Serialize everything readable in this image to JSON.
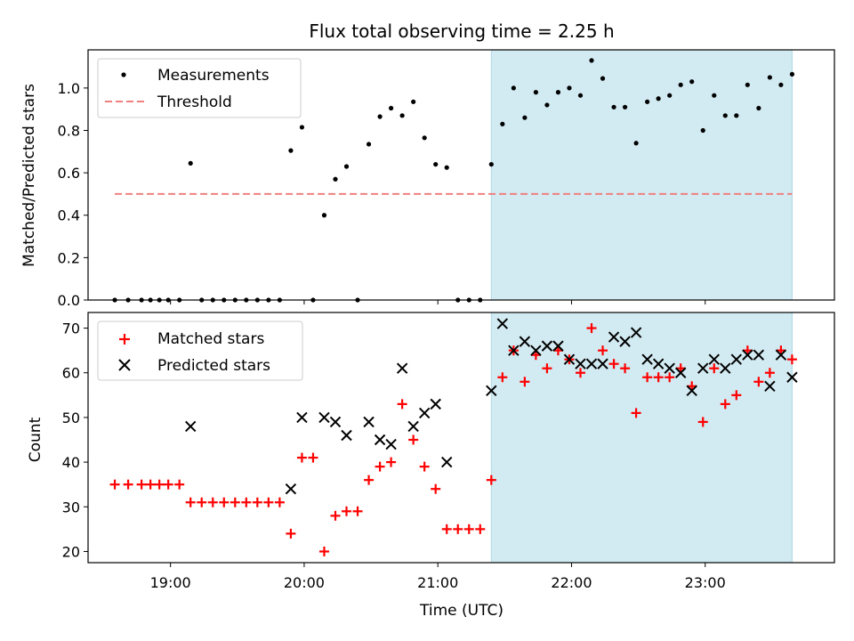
{
  "chart_data": [
    {
      "type": "scatter",
      "title": "Flux total observing time = 2.25 h",
      "xlabel": "",
      "ylabel": "Matched/Predicted stars",
      "xlim": [
        "18:23",
        "23:58"
      ],
      "ylim": [
        0,
        1.18
      ],
      "yticks": [
        "0.0",
        "0.2",
        "0.4",
        "0.6",
        "0.8",
        "1.0"
      ],
      "grid": false,
      "legend": "top-left",
      "shaded_region": {
        "x_start": "21:24",
        "x_end": "23:39",
        "color": "#add8e6"
      },
      "series": [
        {
          "name": "Measurements",
          "marker": "dot",
          "color": "#000000",
          "points": [
            [
              "18:35",
              0
            ],
            [
              "18:41",
              0
            ],
            [
              "18:47",
              0
            ],
            [
              "18:51",
              0
            ],
            [
              "18:55",
              0
            ],
            [
              "18:59",
              0
            ],
            [
              "19:04",
              0
            ],
            [
              "19:09",
              0.645
            ],
            [
              "19:14",
              0
            ],
            [
              "19:19",
              0
            ],
            [
              "19:24",
              0
            ],
            [
              "19:29",
              0
            ],
            [
              "19:34",
              0
            ],
            [
              "19:39",
              0
            ],
            [
              "19:44",
              0
            ],
            [
              "19:49",
              0
            ],
            [
              "19:54",
              0.705
            ],
            [
              "19:59",
              0.815
            ],
            [
              "20:04",
              0
            ],
            [
              "20:09",
              0.4
            ],
            [
              "20:14",
              0.57
            ],
            [
              "20:19",
              0.63
            ],
            [
              "20:24",
              0
            ],
            [
              "20:29",
              0.735
            ],
            [
              "20:34",
              0.865
            ],
            [
              "20:39",
              0.905
            ],
            [
              "20:44",
              0.87
            ],
            [
              "20:49",
              0.935
            ],
            [
              "20:54",
              0.765
            ],
            [
              "20:59",
              0.64
            ],
            [
              "21:04",
              0.625
            ],
            [
              "21:09",
              0
            ],
            [
              "21:14",
              0
            ],
            [
              "21:19",
              0
            ],
            [
              "21:24",
              0.64
            ],
            [
              "21:29",
              0.83
            ],
            [
              "21:34",
              1.0
            ],
            [
              "21:39",
              0.86
            ],
            [
              "21:44",
              0.98
            ],
            [
              "21:49",
              0.92
            ],
            [
              "21:54",
              0.98
            ],
            [
              "21:59",
              1.0
            ],
            [
              "22:04",
              0.965
            ],
            [
              "22:09",
              1.13
            ],
            [
              "22:14",
              1.045
            ],
            [
              "22:19",
              0.91
            ],
            [
              "22:24",
              0.91
            ],
            [
              "22:29",
              0.74
            ],
            [
              "22:34",
              0.935
            ],
            [
              "22:39",
              0.95
            ],
            [
              "22:44",
              0.965
            ],
            [
              "22:49",
              1.015
            ],
            [
              "22:54",
              1.03
            ],
            [
              "22:59",
              0.8
            ],
            [
              "23:04",
              0.965
            ],
            [
              "23:09",
              0.87
            ],
            [
              "23:14",
              0.87
            ],
            [
              "23:19",
              1.015
            ],
            [
              "23:24",
              0.905
            ],
            [
              "23:29",
              1.05
            ],
            [
              "23:34",
              1.015
            ],
            [
              "23:39",
              1.065
            ]
          ]
        },
        {
          "name": "Threshold",
          "type": "line",
          "style": "dashed",
          "color": "#f08080",
          "points": [
            [
              "18:35",
              0.5
            ],
            [
              "23:39",
              0.5
            ]
          ]
        }
      ]
    },
    {
      "type": "scatter",
      "title": "",
      "xlabel": "Time (UTC)",
      "ylabel": "Count",
      "xlim": [
        "18:23",
        "23:58"
      ],
      "ylim": [
        17.5,
        73.5
      ],
      "xticks": [
        "19:00",
        "20:00",
        "21:00",
        "22:00",
        "23:00"
      ],
      "yticks": [
        "20",
        "30",
        "40",
        "50",
        "60",
        "70"
      ],
      "grid": false,
      "legend": "top-left",
      "shaded_region": {
        "x_start": "21:24",
        "x_end": "23:39",
        "color": "#add8e6"
      },
      "series": [
        {
          "name": "Matched stars",
          "marker": "plus",
          "color": "#ff0000",
          "points": [
            [
              "18:35",
              35
            ],
            [
              "18:41",
              35
            ],
            [
              "18:47",
              35
            ],
            [
              "18:51",
              35
            ],
            [
              "18:55",
              35
            ],
            [
              "18:59",
              35
            ],
            [
              "19:04",
              35
            ],
            [
              "19:09",
              31
            ],
            [
              "19:14",
              31
            ],
            [
              "19:19",
              31
            ],
            [
              "19:24",
              31
            ],
            [
              "19:29",
              31
            ],
            [
              "19:34",
              31
            ],
            [
              "19:39",
              31
            ],
            [
              "19:44",
              31
            ],
            [
              "19:49",
              31
            ],
            [
              "19:54",
              24
            ],
            [
              "19:59",
              41
            ],
            [
              "20:04",
              41
            ],
            [
              "20:09",
              20
            ],
            [
              "20:14",
              28
            ],
            [
              "20:19",
              29
            ],
            [
              "20:24",
              29
            ],
            [
              "20:29",
              36
            ],
            [
              "20:34",
              39
            ],
            [
              "20:39",
              40
            ],
            [
              "20:44",
              53
            ],
            [
              "20:49",
              45
            ],
            [
              "20:54",
              39
            ],
            [
              "20:59",
              34
            ],
            [
              "21:04",
              25
            ],
            [
              "21:09",
              25
            ],
            [
              "21:14",
              25
            ],
            [
              "21:19",
              25
            ],
            [
              "21:24",
              36
            ],
            [
              "21:29",
              59
            ],
            [
              "21:34",
              65
            ],
            [
              "21:39",
              58
            ],
            [
              "21:44",
              64
            ],
            [
              "21:49",
              61
            ],
            [
              "21:54",
              65
            ],
            [
              "21:59",
              63
            ],
            [
              "22:04",
              60
            ],
            [
              "22:09",
              70
            ],
            [
              "22:14",
              65
            ],
            [
              "22:19",
              62
            ],
            [
              "22:24",
              61
            ],
            [
              "22:29",
              51
            ],
            [
              "22:34",
              59
            ],
            [
              "22:39",
              59
            ],
            [
              "22:44",
              59
            ],
            [
              "22:49",
              61
            ],
            [
              "22:54",
              57
            ],
            [
              "22:59",
              49
            ],
            [
              "23:04",
              61
            ],
            [
              "23:09",
              53
            ],
            [
              "23:14",
              55
            ],
            [
              "23:19",
              65
            ],
            [
              "23:24",
              58
            ],
            [
              "23:29",
              60
            ],
            [
              "23:34",
              65
            ],
            [
              "23:39",
              63
            ]
          ]
        },
        {
          "name": "Predicted stars",
          "marker": "x",
          "color": "#000000",
          "points": [
            [
              "19:09",
              48
            ],
            [
              "19:54",
              34
            ],
            [
              "19:59",
              50
            ],
            [
              "20:09",
              50
            ],
            [
              "20:14",
              49
            ],
            [
              "20:19",
              46
            ],
            [
              "20:29",
              49
            ],
            [
              "20:34",
              45
            ],
            [
              "20:39",
              44
            ],
            [
              "20:44",
              61
            ],
            [
              "20:49",
              48
            ],
            [
              "20:54",
              51
            ],
            [
              "20:59",
              53
            ],
            [
              "21:04",
              40
            ],
            [
              "21:24",
              56
            ],
            [
              "21:29",
              71
            ],
            [
              "21:34",
              65
            ],
            [
              "21:39",
              67
            ],
            [
              "21:44",
              65
            ],
            [
              "21:49",
              66
            ],
            [
              "21:54",
              66
            ],
            [
              "21:59",
              63
            ],
            [
              "22:04",
              62
            ],
            [
              "22:09",
              62
            ],
            [
              "22:14",
              62
            ],
            [
              "22:19",
              68
            ],
            [
              "22:24",
              67
            ],
            [
              "22:29",
              69
            ],
            [
              "22:34",
              63
            ],
            [
              "22:39",
              62
            ],
            [
              "22:44",
              61
            ],
            [
              "22:49",
              60
            ],
            [
              "22:54",
              56
            ],
            [
              "22:59",
              61
            ],
            [
              "23:04",
              63
            ],
            [
              "23:09",
              61
            ],
            [
              "23:14",
              63
            ],
            [
              "23:19",
              64
            ],
            [
              "23:24",
              64
            ],
            [
              "23:29",
              57
            ],
            [
              "23:34",
              64
            ],
            [
              "23:39",
              59
            ]
          ]
        }
      ]
    }
  ]
}
